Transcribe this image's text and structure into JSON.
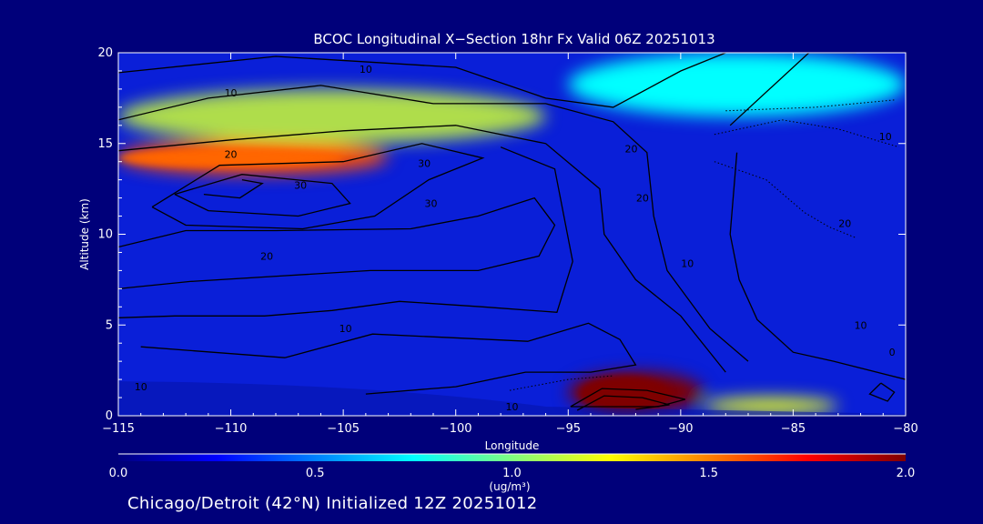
{
  "chart_data": {
    "type": "heatmap",
    "title": "BCOC Longitudinal X−Section 18hr  Fx Valid 06Z 20251013",
    "xlabel": "Longitude",
    "ylabel": "Altitude (km)",
    "xlim": [
      -115,
      -80
    ],
    "ylim": [
      0,
      20
    ],
    "x_ticks": [
      -115,
      -110,
      -105,
      -100,
      -95,
      -90,
      -85,
      -80
    ],
    "x_tick_labels": [
      "−115",
      "−110",
      "−105",
      "−100",
      "−95",
      "−90",
      "−85",
      "−80"
    ],
    "y_ticks": [
      0,
      5,
      10,
      15,
      20
    ],
    "y_tick_labels": [
      "0",
      "5",
      "10",
      "15",
      "20"
    ],
    "colorbar": {
      "min": 0.0,
      "max": 2.0,
      "ticks": [
        0.0,
        0.5,
        1.0,
        1.5,
        2.0
      ],
      "tick_labels": [
        "0.0",
        "0.5",
        "1.0",
        "1.5",
        "2.0"
      ],
      "units": "(ug/m³)",
      "colors": [
        "#00007f",
        "#0000ff",
        "#0080ff",
        "#00ffff",
        "#80ff80",
        "#ffff00",
        "#ff8000",
        "#ff0000",
        "#7f0000"
      ]
    },
    "concentration_features": [
      {
        "lon_range": [
          -115,
          -103
        ],
        "alt_range": [
          13.3,
          15.2
        ],
        "level": 1.6
      },
      {
        "lon_range": [
          -115,
          -96
        ],
        "alt_range": [
          15.0,
          18.0
        ],
        "level": 1.15
      },
      {
        "lon_range": [
          -95,
          -80
        ],
        "alt_range": [
          16.5,
          20.0
        ],
        "level": 0.75
      },
      {
        "lon_range": [
          -95,
          -89
        ],
        "alt_range": [
          0.2,
          2.4
        ],
        "level": 2.0
      },
      {
        "lon_range": [
          -89,
          -83
        ],
        "alt_range": [
          0.1,
          1.0
        ],
        "level": 1.2
      }
    ],
    "contour_labels": [
      {
        "text": "10",
        "lon": -104,
        "alt": 19.1
      },
      {
        "text": "10",
        "lon": -110,
        "alt": 17.8
      },
      {
        "text": "20",
        "lon": -110,
        "alt": 14.4
      },
      {
        "text": "30",
        "lon": -101.4,
        "alt": 13.9
      },
      {
        "text": "30",
        "lon": -106.9,
        "alt": 12.7
      },
      {
        "text": "20",
        "lon": -92.2,
        "alt": 14.7
      },
      {
        "text": "10",
        "lon": -80.9,
        "alt": 15.4
      },
      {
        "text": "30",
        "lon": -101.1,
        "alt": 11.7
      },
      {
        "text": "20",
        "lon": -91.7,
        "alt": 12.0
      },
      {
        "text": "20",
        "lon": -82.7,
        "alt": 10.6
      },
      {
        "text": "20",
        "lon": -108.4,
        "alt": 8.8
      },
      {
        "text": "10",
        "lon": -89.7,
        "alt": 8.4
      },
      {
        "text": "10",
        "lon": -104.9,
        "alt": 4.8
      },
      {
        "text": "10",
        "lon": -82,
        "alt": 5.0
      },
      {
        "text": "10",
        "lon": -114,
        "alt": 1.6
      },
      {
        "text": "10",
        "lon": -97.5,
        "alt": 0.5
      },
      {
        "text": "0",
        "lon": -80.6,
        "alt": 3.5
      }
    ]
  },
  "footer": {
    "text": "Chicago/Detroit (42°N) Initialized 12Z 20251012"
  }
}
